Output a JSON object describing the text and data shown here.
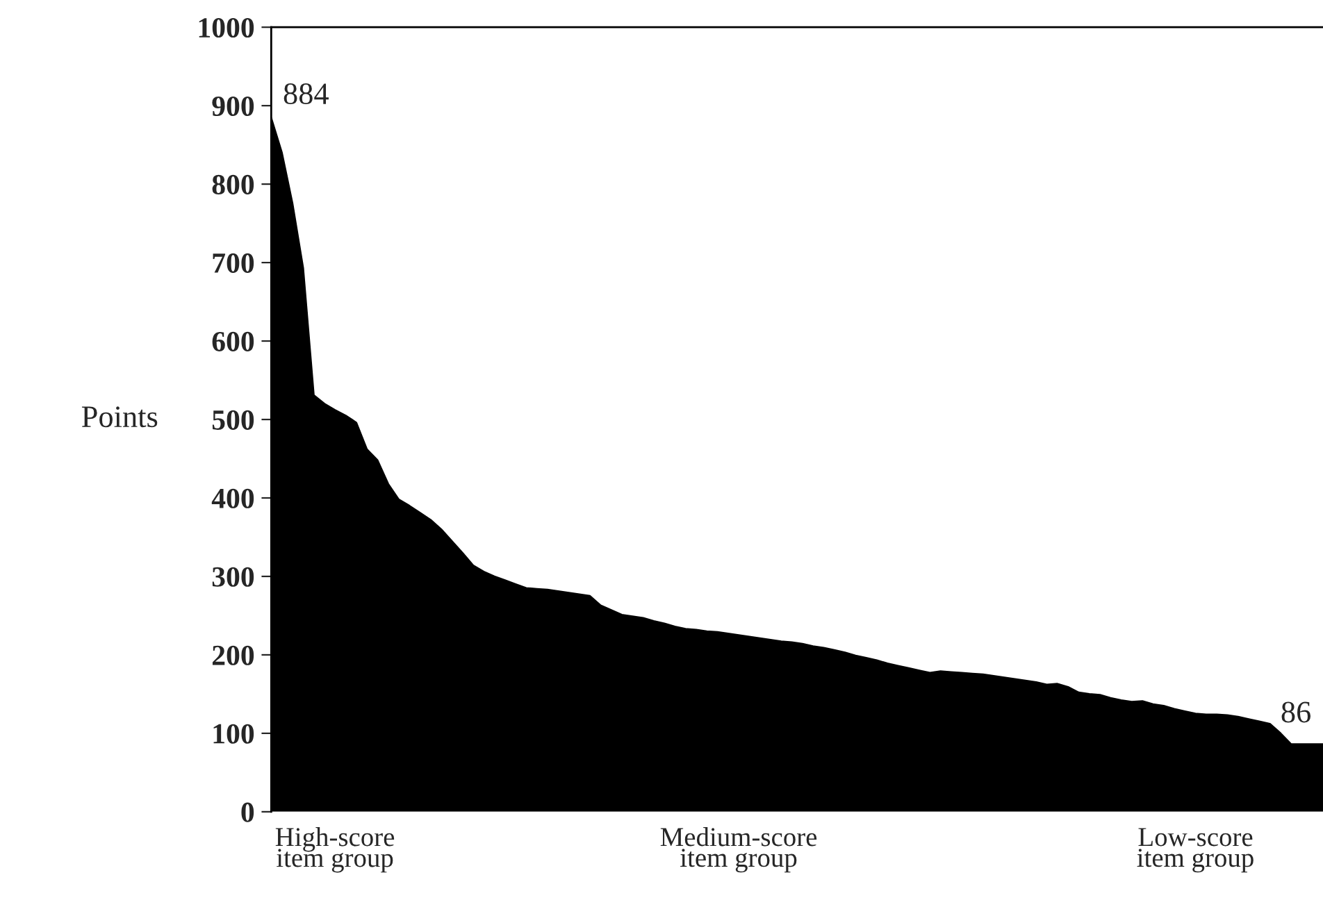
{
  "chart_data": {
    "type": "area",
    "ylabel": "Points",
    "color": "#000000",
    "categories": [
      null,
      null,
      null,
      null,
      null,
      null,
      "High-score\nitem group",
      null,
      null,
      null,
      null,
      null,
      null,
      null,
      null,
      null,
      null,
      null,
      null,
      null,
      null,
      null,
      null,
      null,
      null,
      null,
      null,
      null,
      null,
      null,
      null,
      null,
      null,
      null,
      null,
      null,
      null,
      null,
      null,
      null,
      null,
      null,
      null,
      null,
      "Medium-score\nitem group",
      null,
      null,
      null,
      null,
      null,
      null,
      null,
      null,
      null,
      null,
      null,
      null,
      null,
      null,
      null,
      null,
      null,
      null,
      null,
      null,
      null,
      null,
      null,
      null,
      null,
      null,
      null,
      null,
      null,
      null,
      null,
      null,
      null,
      null,
      null,
      null,
      null,
      null,
      null,
      null,
      null,
      null,
      "Low-score\nitem group",
      null,
      null,
      null,
      null,
      null,
      null,
      null,
      null,
      null,
      null,
      null,
      null
    ],
    "values": [
      884,
      840,
      775,
      693,
      531,
      520,
      512,
      505,
      496,
      462,
      448,
      418,
      398,
      390,
      381,
      372,
      360,
      345,
      330,
      314,
      306,
      300,
      295,
      290,
      285,
      284,
      283,
      281,
      279,
      277,
      275,
      263,
      257,
      251,
      249,
      247,
      243,
      240,
      236,
      233,
      232,
      230,
      229,
      227,
      225,
      223,
      221,
      219,
      217,
      216,
      214,
      211,
      209,
      206,
      203,
      199,
      196,
      193,
      189,
      186,
      183,
      180,
      177,
      179,
      178,
      177,
      176,
      175,
      173,
      171,
      169,
      167,
      165,
      162,
      163,
      159,
      152,
      150,
      149,
      145,
      142,
      140,
      141,
      137,
      135,
      131,
      128,
      125,
      124,
      124,
      123,
      121,
      118,
      115,
      112,
      100,
      86,
      86,
      86,
      86
    ],
    "ylim": [
      0,
      1000
    ],
    "yticks": [
      0,
      100,
      200,
      300,
      400,
      500,
      600,
      700,
      800,
      900,
      1000
    ],
    "grid": false,
    "legend": false,
    "annotations": [
      "884",
      "86"
    ]
  }
}
